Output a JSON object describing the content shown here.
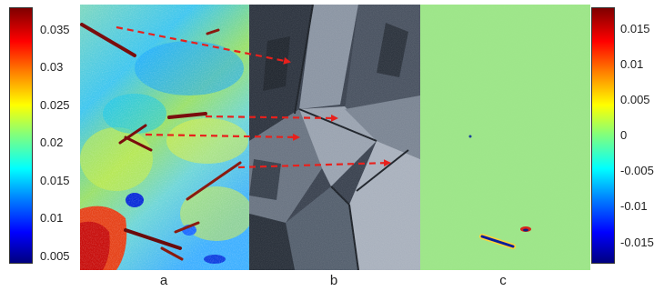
{
  "colorbar_left": {
    "ticks": [
      "0.035",
      "0.03",
      "0.025",
      "0.02",
      "0.015",
      "0.01",
      "0.005"
    ],
    "range": [
      0.004,
      0.038
    ],
    "tick_values": [
      0.035,
      0.03,
      0.025,
      0.02,
      0.015,
      0.01,
      0.005
    ]
  },
  "colorbar_right": {
    "ticks": [
      "0.015",
      "0.01",
      "0.005",
      "0",
      "-0.005",
      "-0.01",
      "-0.015"
    ],
    "range": [
      -0.018,
      0.018
    ],
    "tick_values": [
      0.015,
      0.01,
      0.005,
      0,
      -0.005,
      -0.01,
      -0.015
    ]
  },
  "panels": {
    "a": {
      "label": "a"
    },
    "b": {
      "label": "b"
    },
    "c": {
      "label": "c"
    }
  },
  "colors": {
    "arrow": "#e8201c",
    "jet": [
      "#00007f",
      "#0000ff",
      "#007fff",
      "#00ffff",
      "#7fff7f",
      "#ffff00",
      "#ff7f00",
      "#ff0000",
      "#7f0000"
    ]
  }
}
